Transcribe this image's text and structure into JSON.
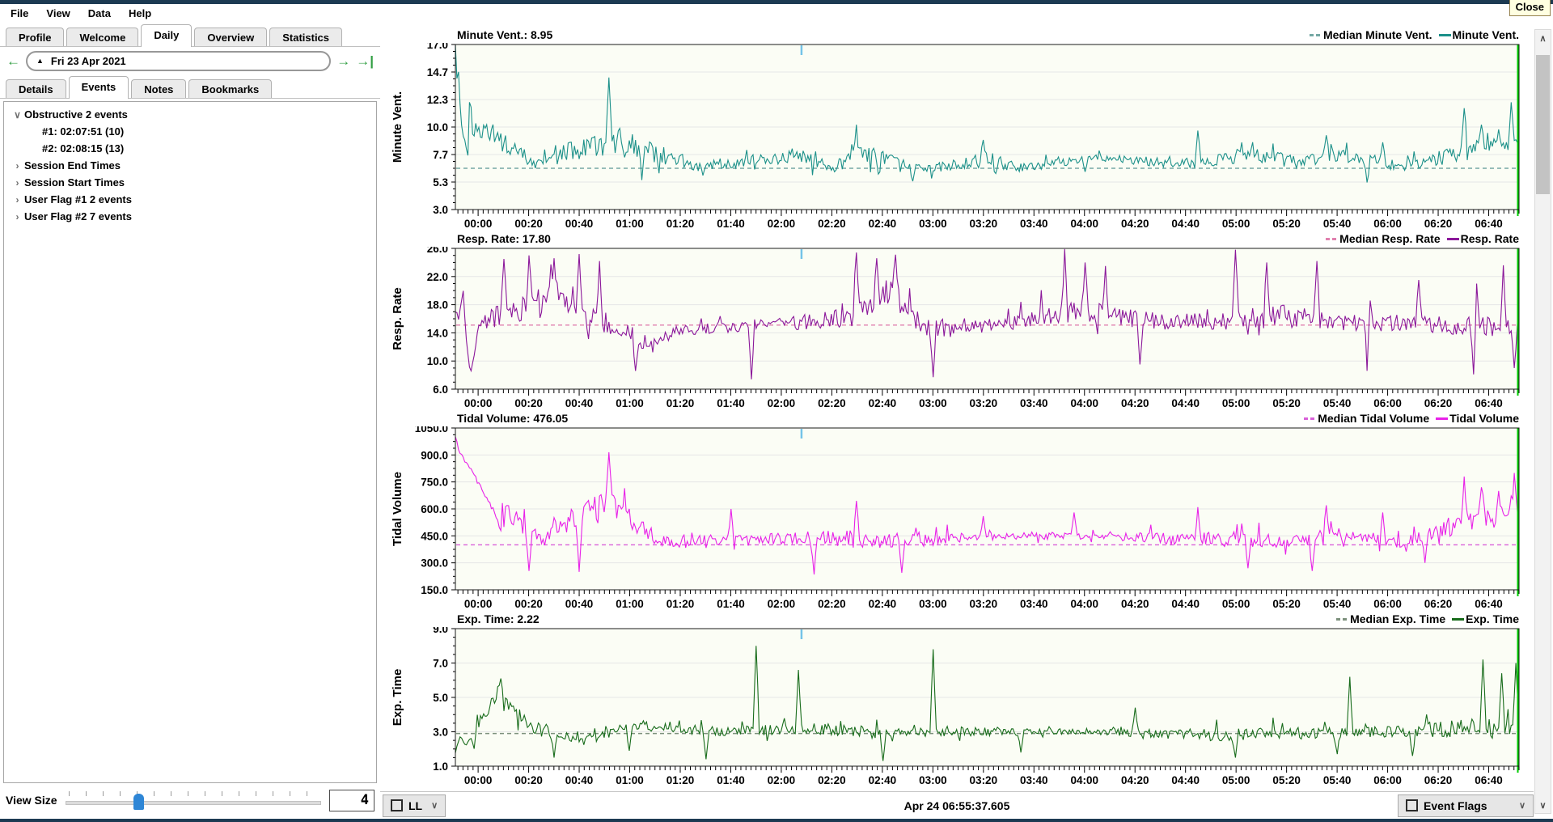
{
  "window": {
    "close_tooltip": "Close"
  },
  "menu": {
    "items": [
      "File",
      "View",
      "Data",
      "Help"
    ]
  },
  "main_tabs": {
    "items": [
      "Profile",
      "Welcome",
      "Daily",
      "Overview",
      "Statistics"
    ],
    "active": "Daily"
  },
  "date_nav": {
    "label": "Fri 23 Apr 2021",
    "dropdown_icon": "up-triangle"
  },
  "side_tabs": {
    "items": [
      "Details",
      "Events",
      "Notes",
      "Bookmarks"
    ],
    "active": "Events"
  },
  "events_tree": {
    "items": [
      {
        "label": "Obstructive 2 events",
        "state": "expanded",
        "level": 0
      },
      {
        "label": "#1: 02:07:51 (10)",
        "state": "leaf",
        "level": 1
      },
      {
        "label": "#2: 02:08:15 (13)",
        "state": "leaf",
        "level": 1
      },
      {
        "label": "Session End Times",
        "state": "collapsed",
        "level": 0
      },
      {
        "label": "Session Start Times",
        "state": "collapsed",
        "level": 0
      },
      {
        "label": "User Flag #1 2 events",
        "state": "collapsed",
        "level": 0
      },
      {
        "label": "User Flag #2 7 events",
        "state": "collapsed",
        "level": 0
      }
    ]
  },
  "view_size": {
    "label": "View Size",
    "value": "4"
  },
  "bottom_bar": {
    "left_combo_label": "LL",
    "center_status": "Apr 24 06:55:37.605",
    "right_toggle_label": "Event Flags"
  },
  "chart_data": {
    "type": "line",
    "x_tick_labels": [
      "00:00",
      "00:20",
      "00:40",
      "01:00",
      "01:20",
      "01:40",
      "02:00",
      "02:20",
      "02:40",
      "03:00",
      "03:20",
      "03:40",
      "04:00",
      "04:20",
      "04:40",
      "05:00",
      "05:20",
      "05:40",
      "06:00",
      "06:20",
      "06:40"
    ],
    "x_tick_step_minutes": 20,
    "minor_tick_minutes": 2,
    "t_range_minutes": [
      -9,
      412
    ],
    "cursor_minute": 128,
    "cursor_color": "#74c3e8",
    "session_end_line_color": "#00cc00",
    "plot_bg": "#fbfdf5",
    "grid_color": "#e6e6e6",
    "charts": [
      {
        "name": "minute-vent",
        "title": "Minute Vent.: 8.95",
        "ylabel": "Minute Vent.",
        "legend": [
          "Median Minute Vent.",
          "Minute Vent."
        ],
        "color": "#1b9089",
        "median_color": "#74a8a4",
        "ylim": [
          3,
          17
        ],
        "yticks": [
          "17.0",
          "14.7",
          "12.3",
          "10.0",
          "7.7",
          "5.3",
          "3.0"
        ],
        "median": 6.5,
        "segments": [
          [
            -9,
            -4,
            11,
            2.5
          ],
          [
            -4,
            50,
            6.9,
            0.8
          ],
          [
            50,
            54,
            9,
            2.5
          ],
          [
            54,
            120,
            6.7,
            0.8
          ],
          [
            120,
            136,
            7.6,
            1.1
          ],
          [
            136,
            146,
            6.6,
            0.8
          ],
          [
            146,
            158,
            7.8,
            1.5
          ],
          [
            158,
            196,
            6.4,
            0.6
          ],
          [
            196,
            206,
            7.2,
            1.2
          ],
          [
            206,
            226,
            6.5,
            0.7
          ],
          [
            226,
            262,
            7.4,
            0.5
          ],
          [
            262,
            298,
            6.9,
            0.9
          ],
          [
            298,
            318,
            7.6,
            1.2
          ],
          [
            318,
            332,
            7.0,
            1.0
          ],
          [
            332,
            346,
            7.8,
            1.3
          ],
          [
            346,
            384,
            6.6,
            0.8
          ],
          [
            384,
            412,
            8.2,
            1.5
          ]
        ],
        "start_decay": [
          [
            -9,
            16.9
          ],
          [
            -8.3,
            13.5
          ],
          [
            -7.6,
            15.2
          ],
          [
            -7,
            11
          ],
          [
            -6,
            9.2
          ],
          [
            -5,
            8.4
          ],
          [
            -4,
            7.6
          ]
        ],
        "spikes": [
          [
            51.5,
            14.2
          ],
          [
            150,
            10.2
          ],
          [
            200,
            8.9
          ],
          [
            285,
            9.7
          ],
          [
            336,
            9.3
          ],
          [
            358,
            8.7
          ],
          [
            390,
            11.6
          ],
          [
            397,
            10.2
          ],
          [
            404,
            9.8
          ],
          [
            409,
            12.1
          ]
        ],
        "dips": [
          [
            65,
            5.5
          ],
          [
            172,
            5.4
          ],
          [
            240,
            6.2
          ],
          [
            352,
            5.3
          ]
        ]
      },
      {
        "name": "resp-rate",
        "title": "Resp. Rate: 17.80",
        "ylabel": "Resp. Rate",
        "legend": [
          "Median Resp. Rate",
          "Resp. Rate"
        ],
        "color": "#8b179a",
        "median_color": "#e080ae",
        "ylim": [
          6,
          26
        ],
        "yticks": [
          "26.0",
          "22.0",
          "18.0",
          "14.0",
          "10.0",
          "6.0"
        ],
        "median": 15.1,
        "segments": [
          [
            -9,
            0,
            15,
            2
          ],
          [
            0,
            56,
            18.5,
            4.2
          ],
          [
            56,
            64,
            13.5,
            1
          ],
          [
            64,
            72,
            12,
            2
          ],
          [
            72,
            86,
            14.3,
            1.4
          ],
          [
            86,
            140,
            15.2,
            1.6
          ],
          [
            140,
            154,
            16,
            2.5
          ],
          [
            154,
            172,
            20,
            3.5
          ],
          [
            172,
            182,
            14.5,
            2.5
          ],
          [
            182,
            228,
            15.2,
            1.8
          ],
          [
            228,
            252,
            17,
            3.2
          ],
          [
            252,
            298,
            15.4,
            2
          ],
          [
            298,
            332,
            16.5,
            3
          ],
          [
            332,
            362,
            15.5,
            2.2
          ],
          [
            362,
            386,
            15.2,
            2
          ],
          [
            386,
            412,
            15,
            2.8
          ]
        ],
        "start_decay": [
          [
            -9,
            17
          ],
          [
            -7.5,
            16
          ],
          [
            -6,
            20.3
          ],
          [
            -4.5,
            12
          ],
          [
            -3,
            8.2
          ],
          [
            -1.5,
            11
          ],
          [
            0,
            14.5
          ]
        ],
        "spikes": [
          [
            10,
            24.5
          ],
          [
            20,
            25
          ],
          [
            30,
            24.6
          ],
          [
            40,
            25.2
          ],
          [
            48,
            24.2
          ],
          [
            150,
            25.4
          ],
          [
            158,
            24.6
          ],
          [
            165,
            25.1
          ],
          [
            232,
            25.9
          ],
          [
            240,
            24
          ],
          [
            248,
            23.5
          ],
          [
            300,
            25.8
          ],
          [
            312,
            24
          ],
          [
            332,
            24.2
          ],
          [
            352,
            23
          ],
          [
            372,
            21.5
          ],
          [
            395,
            21
          ],
          [
            406,
            23.6
          ]
        ],
        "dips": [
          [
            62,
            8.6
          ],
          [
            108,
            7.4
          ],
          [
            180,
            7.7
          ],
          [
            262,
            9.5
          ],
          [
            352,
            8.6
          ],
          [
            394,
            8.1
          ],
          [
            410,
            9
          ]
        ]
      },
      {
        "name": "tidal-volume",
        "title": "Tidal Volume: 476.05",
        "ylabel": "Tidal Volume",
        "legend": [
          "Median Tidal Volume",
          "Tidal Volume"
        ],
        "color": "#e821e8",
        "median_color": "#d960d9",
        "ylim": [
          150,
          1050
        ],
        "yticks": [
          "1050.0",
          "900.0",
          "750.0",
          "600.0",
          "450.0",
          "300.0",
          "150.0"
        ],
        "median": 400,
        "segments": [
          [
            -9,
            0,
            800,
            100
          ],
          [
            0,
            48,
            420,
            90
          ],
          [
            48,
            54,
            650,
            120
          ],
          [
            54,
            88,
            420,
            70
          ],
          [
            88,
            124,
            430,
            45
          ],
          [
            124,
            140,
            440,
            70
          ],
          [
            140,
            158,
            430,
            90
          ],
          [
            158,
            176,
            420,
            80
          ],
          [
            176,
            226,
            445,
            35
          ],
          [
            226,
            264,
            450,
            30
          ],
          [
            264,
            298,
            430,
            70
          ],
          [
            298,
            318,
            430,
            80
          ],
          [
            318,
            334,
            420,
            60
          ],
          [
            334,
            348,
            450,
            80
          ],
          [
            348,
            384,
            410,
            55
          ],
          [
            384,
            412,
            550,
            110
          ]
        ],
        "start_decay": [
          [
            -9,
            1005
          ],
          [
            -8,
            940
          ],
          [
            -7,
            895
          ],
          [
            -6,
            905
          ],
          [
            -5,
            850
          ],
          [
            -4,
            835
          ],
          [
            -2,
            800
          ],
          [
            0,
            745
          ],
          [
            2,
            690
          ],
          [
            4,
            640
          ],
          [
            6,
            600
          ],
          [
            9,
            480
          ]
        ],
        "spikes": [
          [
            51.5,
            915
          ],
          [
            100,
            600
          ],
          [
            150,
            645
          ],
          [
            200,
            560
          ],
          [
            236,
            580
          ],
          [
            285,
            610
          ],
          [
            336,
            620
          ],
          [
            358,
            580
          ],
          [
            390,
            780
          ],
          [
            397,
            720
          ],
          [
            404,
            700
          ],
          [
            410,
            800
          ]
        ],
        "dips": [
          [
            20,
            255
          ],
          [
            40,
            250
          ],
          [
            133,
            235
          ],
          [
            168,
            245
          ],
          [
            305,
            270
          ],
          [
            330,
            255
          ],
          [
            375,
            300
          ]
        ]
      },
      {
        "name": "exp-time",
        "title": "Exp. Time: 2.22",
        "ylabel": "Exp. Time",
        "legend": [
          "Median Exp. Time",
          "Exp. Time"
        ],
        "color": "#186c1b",
        "median_color": "#7d917d",
        "ylim": [
          1,
          9
        ],
        "yticks": [
          "9.0",
          "7.0",
          "5.0",
          "3.0",
          "1.0"
        ],
        "median": 2.9,
        "segments": [
          [
            -9,
            0,
            2.2,
            0.5
          ],
          [
            0,
            6,
            4.2,
            0.9
          ],
          [
            6,
            13,
            5.1,
            0.7
          ],
          [
            13,
            26,
            3.4,
            0.7
          ],
          [
            26,
            54,
            2.4,
            0.5
          ],
          [
            54,
            70,
            3.4,
            0.5
          ],
          [
            70,
            122,
            3.0,
            0.5
          ],
          [
            122,
            146,
            3.2,
            0.6
          ],
          [
            146,
            170,
            2.9,
            0.6
          ],
          [
            170,
            228,
            3.0,
            0.45
          ],
          [
            228,
            262,
            3.0,
            0.3
          ],
          [
            262,
            330,
            2.8,
            0.7
          ],
          [
            330,
            384,
            3.0,
            0.6
          ],
          [
            384,
            412,
            3.2,
            1.1
          ]
        ],
        "start_decay": [
          [
            -9,
            1.8
          ],
          [
            -7,
            2.8
          ],
          [
            -5,
            2.2
          ],
          [
            -3,
            2.6
          ],
          [
            -1,
            1.9
          ]
        ],
        "spikes": [
          [
            9,
            6.1
          ],
          [
            110,
            8.0
          ],
          [
            127,
            6.6
          ],
          [
            180,
            7.8
          ],
          [
            260,
            4.4
          ],
          [
            345,
            6.2
          ],
          [
            398,
            7.2
          ],
          [
            405,
            6.4
          ],
          [
            411,
            7.0
          ]
        ],
        "dips": [
          [
            30,
            1.5
          ],
          [
            60,
            1.9
          ],
          [
            90,
            1.4
          ],
          [
            160,
            1.3
          ],
          [
            215,
            1.8
          ],
          [
            300,
            1.5
          ],
          [
            340,
            1.7
          ],
          [
            370,
            1.6
          ]
        ]
      }
    ]
  },
  "icons": {
    "scrollbar_up": "chevron-up",
    "scrollbar_down": "chevron-down",
    "combo_dropdown": "chevron-down",
    "tree_expanded": "chevron-down",
    "tree_collapsed": "chevron-right"
  }
}
